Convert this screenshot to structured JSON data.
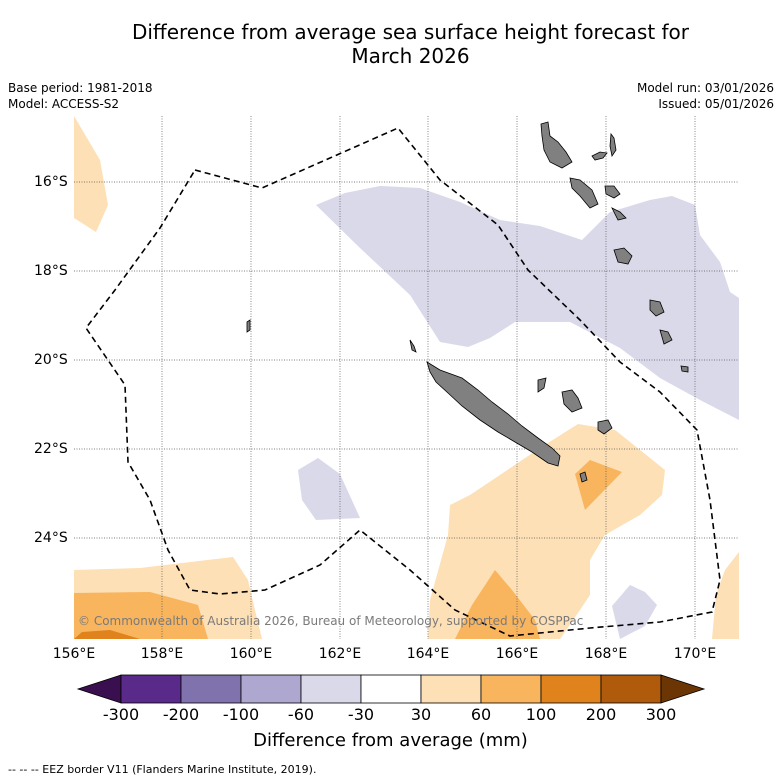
{
  "title_line1": "Difference from average sea surface height forecast for",
  "title_line2": "March 2026",
  "base_period": "Base period: 1981-2018",
  "model": "Model: ACCESS-S2",
  "model_run": "Model run: 03/01/2026",
  "issued": "Issued: 05/01/2026",
  "lon_labels": [
    "156°E",
    "158°E",
    "160°E",
    "162°E",
    "164°E",
    "166°E",
    "168°E",
    "170°E"
  ],
  "lat_labels": [
    "16°S",
    "18°S",
    "20°S",
    "22°S",
    "24°S"
  ],
  "colorbar_ticks": [
    "-300",
    "-200",
    "-100",
    "-60",
    "-30",
    "30",
    "60",
    "100",
    "200",
    "300"
  ],
  "colorbar_label": "Difference from average (mm)",
  "colorbar_colors": [
    "#3a0f4f",
    "#5a2a8a",
    "#8073ad",
    "#aea7cf",
    "#d9d9ea",
    "#ffffff",
    "#fde0b5",
    "#f9b45e",
    "#e0831c",
    "#b05a0c",
    "#6b3504"
  ],
  "copyright": "© Commonwealth of Australia 2026, Bureau of Meteorology, supported by COSPPac",
  "footnote": "-- -- -- EEZ border V11 (Flanders Marine Institute, 2019).",
  "legend_colors": {
    "land": "#808080",
    "eez": "#000000"
  }
}
